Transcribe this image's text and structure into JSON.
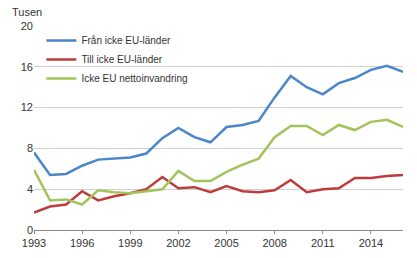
{
  "chart_data": {
    "type": "line",
    "y_label": "Tusen",
    "x": [
      1993,
      1994,
      1995,
      1996,
      1997,
      1998,
      1999,
      2000,
      2001,
      2002,
      2003,
      2004,
      2005,
      2006,
      2007,
      2008,
      2009,
      2010,
      2011,
      2012,
      2013,
      2014,
      2015,
      2016
    ],
    "series": [
      {
        "name": "Från icke EU-länder",
        "color": "#4a86c8",
        "values": [
          7.6,
          5.4,
          5.5,
          6.3,
          6.9,
          7.0,
          7.1,
          7.5,
          9.0,
          10.0,
          9.1,
          8.6,
          10.1,
          10.3,
          10.7,
          13.0,
          15.1,
          14.0,
          13.3,
          14.4,
          14.9,
          15.7,
          16.1,
          15.5
        ]
      },
      {
        "name": "Till icke EU-länder",
        "color": "#be3c3c",
        "values": [
          1.7,
          2.3,
          2.5,
          3.8,
          2.9,
          3.3,
          3.6,
          4.0,
          5.2,
          4.1,
          4.2,
          3.7,
          4.3,
          3.8,
          3.7,
          3.9,
          4.9,
          3.7,
          4.0,
          4.1,
          5.1,
          5.1,
          5.3,
          5.4
        ]
      },
      {
        "name": "Icke EU nettoinvandring",
        "color": "#a3c45a",
        "values": [
          5.9,
          2.9,
          3.0,
          2.5,
          3.9,
          3.7,
          3.6,
          3.8,
          4.0,
          5.8,
          4.8,
          4.8,
          5.7,
          6.4,
          7.0,
          9.1,
          10.2,
          10.2,
          9.3,
          10.3,
          9.8,
          10.6,
          10.8,
          10.1
        ]
      }
    ],
    "xlim": [
      1993,
      2016
    ],
    "xticks": [
      1993,
      1996,
      1999,
      2002,
      2005,
      2008,
      2011,
      2014
    ],
    "ylim": [
      0,
      20
    ],
    "yticks": [
      0,
      4,
      8,
      12,
      16,
      20
    ],
    "grid": true,
    "legend": "top-left"
  }
}
